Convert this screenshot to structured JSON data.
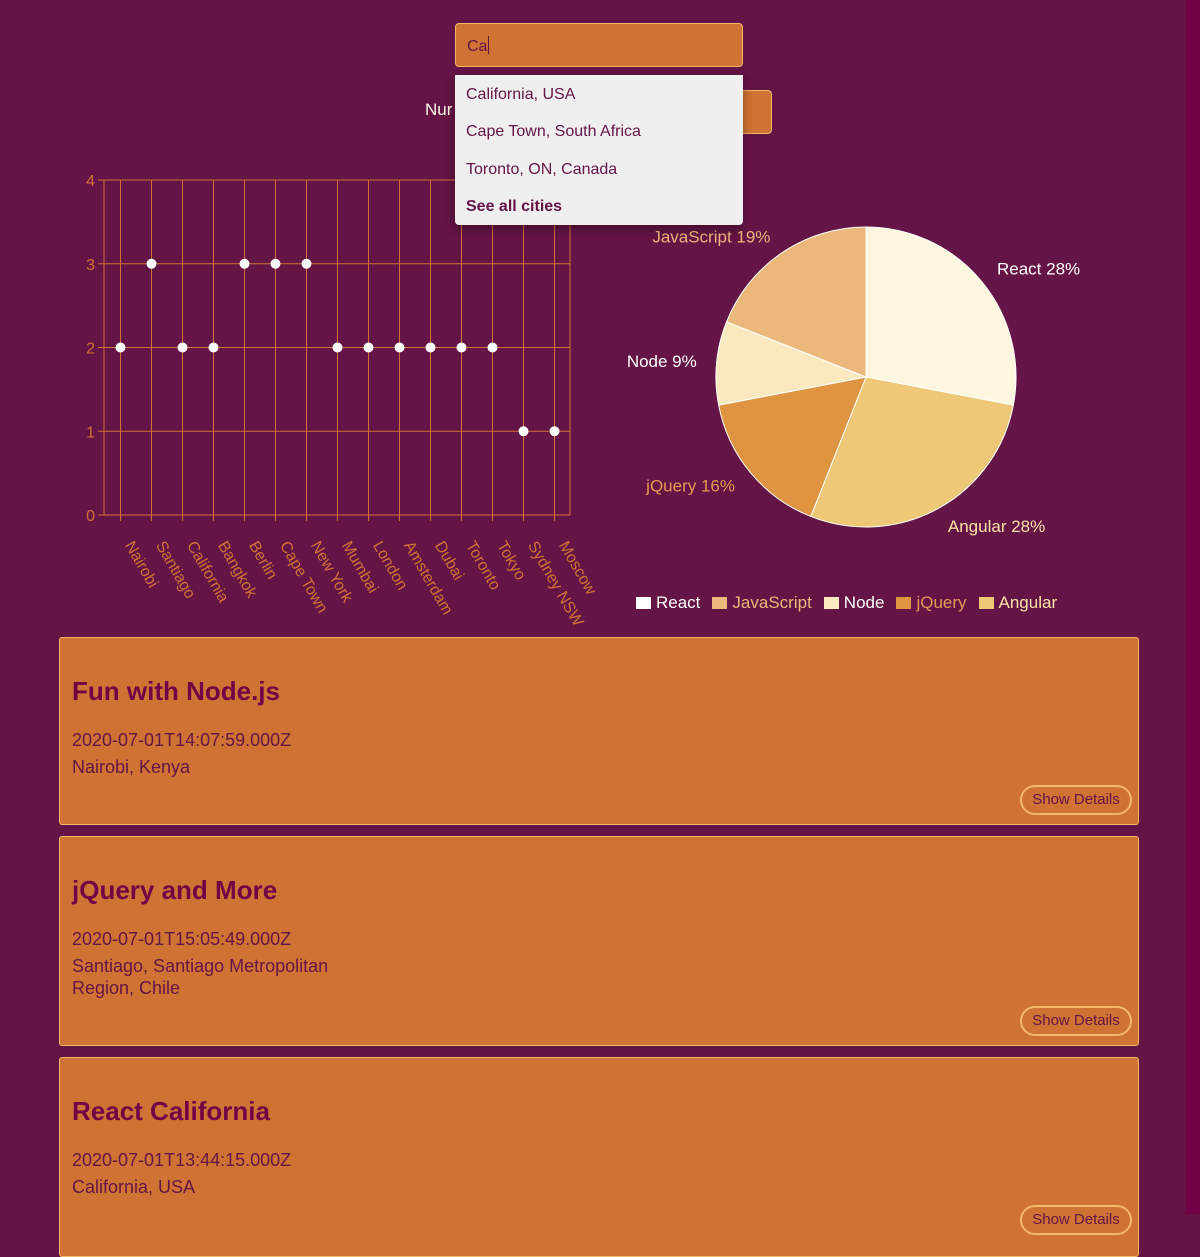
{
  "search": {
    "value": "Ca",
    "suggestions": [
      "California, USA",
      "Cape Town, South Africa",
      "Toronto, ON, Canada"
    ],
    "see_all": "See all cities"
  },
  "number_label": "Nur",
  "colors": {
    "background": "#641445",
    "accent": "#d07234",
    "border": "#f0b867",
    "text_dark": "#641445",
    "text_light": "#fff6e8"
  },
  "chart_data": [
    {
      "type": "scatter",
      "categories": [
        "Nairobi",
        "Santiago",
        "California",
        "Bangkok",
        "Berlin",
        "Cape Town",
        "New York",
        "Mumbai",
        "London",
        "Amsterdam",
        "Dubai",
        "Toronto",
        "Tokyo",
        "Sydney NSW",
        "Moscow"
      ],
      "values": [
        2,
        3,
        2,
        2,
        3,
        3,
        3,
        2,
        2,
        2,
        2,
        2,
        2,
        1,
        1
      ],
      "yticks": [
        0,
        1,
        2,
        3,
        4
      ],
      "ylim": [
        0,
        4
      ],
      "grid": true,
      "colors": {
        "axis": "#d07234",
        "point": "#ffffff"
      }
    },
    {
      "type": "pie",
      "slices": [
        {
          "name": "React",
          "value": 28,
          "label": "React 28%",
          "color": "#fff6df"
        },
        {
          "name": "Angular",
          "value": 28,
          "label": "Angular 28%",
          "color": "#efc877"
        },
        {
          "name": "jQuery",
          "value": 16,
          "label": "jQuery 16%",
          "color": "#de9440"
        },
        {
          "name": "Node",
          "value": 9,
          "label": "Node 9%",
          "color": "#fae9bf"
        },
        {
          "name": "JavaScript",
          "value": 19,
          "label": "JavaScript 19%",
          "color": "#ebb77b"
        }
      ],
      "label_colors": {
        "React": "#ffffff",
        "Angular": "#ffe3a8",
        "jQuery": "#e59a55",
        "Node": "#ffffff",
        "JavaScript": "#efb77a"
      },
      "legend": [
        {
          "name": "React",
          "color": "#ffffff",
          "text_color": "#ffffff"
        },
        {
          "name": "JavaScript",
          "color": "#ebb77b",
          "text_color": "#efb77a"
        },
        {
          "name": "Node",
          "color": "#fae9bf",
          "text_color": "#ffffff"
        },
        {
          "name": "jQuery",
          "color": "#de9440",
          "text_color": "#e59a55"
        },
        {
          "name": "Angular",
          "color": "#efc877",
          "text_color": "#ffe3a8"
        }
      ],
      "legend_position": "bottom"
    }
  ],
  "events": [
    {
      "title": "Fun with Node.js",
      "date": "2020-07-01T14:07:59.000Z",
      "location": "Nairobi, Kenya",
      "button": "Show Details"
    },
    {
      "title": "jQuery and More",
      "date": "2020-07-01T15:05:49.000Z",
      "location": "Santiago, Santiago Metropolitan Region, Chile",
      "button": "Show Details"
    },
    {
      "title": "React California",
      "date": "2020-07-01T13:44:15.000Z",
      "location": "California, USA",
      "button": "Show Details"
    }
  ]
}
